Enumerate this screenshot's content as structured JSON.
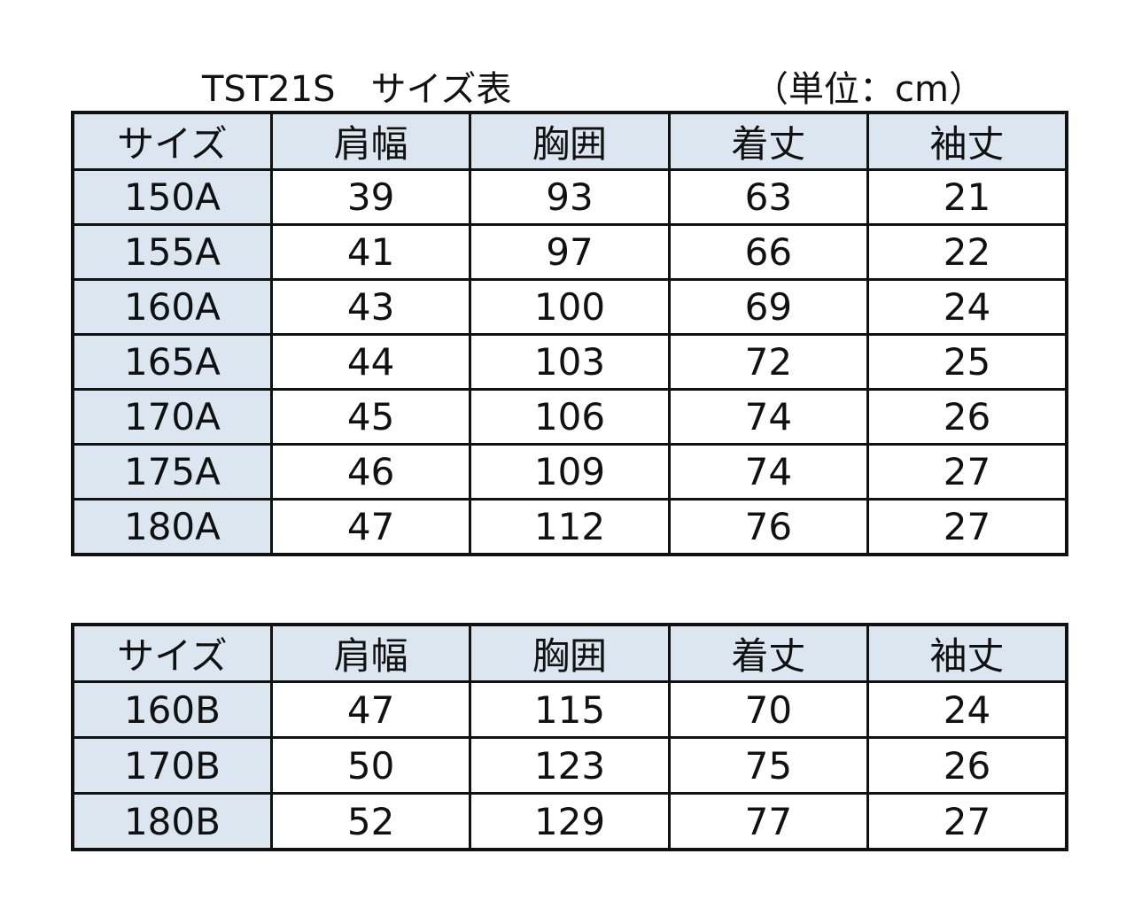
{
  "title": "TST21S　サイズ表",
  "unit": "（単位：cm）",
  "tables": [
    {
      "header": [
        "サイズ",
        "肩幅",
        "胸囲",
        "着丈",
        "袖丈"
      ],
      "rows": [
        [
          "150A",
          39,
          93,
          63,
          21
        ],
        [
          "155A",
          41,
          97,
          66,
          22
        ],
        [
          "160A",
          43,
          100,
          69,
          24
        ],
        [
          "165A",
          44,
          103,
          72,
          25
        ],
        [
          "170A",
          45,
          106,
          74,
          26
        ],
        [
          "175A",
          46,
          109,
          74,
          27
        ],
        [
          "180A",
          47,
          112,
          76,
          27
        ]
      ]
    },
    {
      "header": [
        "サイズ",
        "肩幅",
        "胸囲",
        "着丈",
        "袖丈"
      ],
      "rows": [
        [
          "160B",
          47,
          115,
          70,
          24
        ],
        [
          "170B",
          50,
          123,
          75,
          26
        ],
        [
          "180B",
          52,
          129,
          77,
          27
        ]
      ]
    }
  ]
}
